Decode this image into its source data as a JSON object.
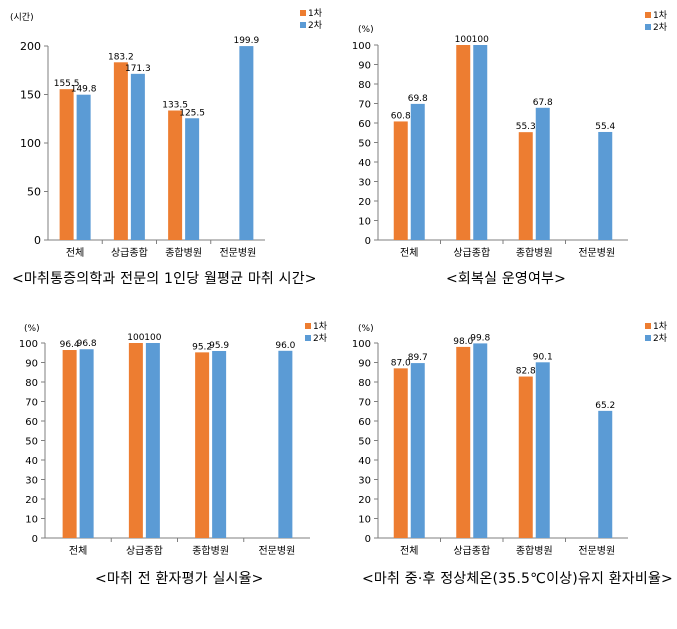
{
  "colors": {
    "series1": "#ED7D31",
    "series2": "#5B9BD5",
    "axis": "#7f7f7f",
    "text": "#000000"
  },
  "chart_data": [
    {
      "type": "bar",
      "ylabel": "(시간)",
      "ylim": [
        0,
        200
      ],
      "yticks": [
        0,
        50,
        100,
        150,
        200
      ],
      "categories": [
        "전체",
        "상급종합",
        "종합병원",
        "전문병원"
      ],
      "series": [
        {
          "name": "1차",
          "values": [
            155.5,
            183.2,
            133.5,
            null
          ],
          "labels": [
            "155.5",
            "183.2",
            "133.5",
            ""
          ]
        },
        {
          "name": "2차",
          "values": [
            149.8,
            171.3,
            125.5,
            199.9
          ],
          "labels": [
            "149.8",
            "171.3",
            "125.5",
            "199.9"
          ]
        }
      ],
      "legend": "top-right",
      "grid": false,
      "caption": "<마취통증의학과 전문의 1인당 월평균 마취 시간>"
    },
    {
      "type": "bar",
      "ylabel": "(%)",
      "ylim": [
        0,
        100
      ],
      "yticks": [
        0,
        10,
        20,
        30,
        40,
        50,
        60,
        70,
        80,
        90,
        100
      ],
      "categories": [
        "전체",
        "상급종합",
        "종합병원",
        "전문병원"
      ],
      "series": [
        {
          "name": "1차",
          "values": [
            60.8,
            100,
            55.3,
            null
          ],
          "labels": [
            "60.8",
            "100",
            "55.3",
            ""
          ]
        },
        {
          "name": "2차",
          "values": [
            69.8,
            100,
            67.8,
            55.4
          ],
          "labels": [
            "69.8",
            "100",
            "67.8",
            "55.4"
          ]
        }
      ],
      "legend": "top-right",
      "grid": false,
      "caption": "<회복실 운영여부>"
    },
    {
      "type": "bar",
      "ylabel": "(%)",
      "ylim": [
        0,
        100
      ],
      "yticks": [
        0,
        10,
        20,
        30,
        40,
        50,
        60,
        70,
        80,
        90,
        100
      ],
      "categories": [
        "전체",
        "상급종합",
        "종합병원",
        "전문병원"
      ],
      "series": [
        {
          "name": "1차",
          "values": [
            96.4,
            100,
            95.2,
            null
          ],
          "labels": [
            "96.4",
            "100",
            "95.2",
            ""
          ]
        },
        {
          "name": "2차",
          "values": [
            96.8,
            100,
            95.9,
            96.0
          ],
          "labels": [
            "96.8",
            "100",
            "95.9",
            "96.0"
          ]
        }
      ],
      "legend": "top-right",
      "grid": false,
      "caption": "<마취 전 환자평가 실시율>"
    },
    {
      "type": "bar",
      "ylabel": "(%)",
      "ylim": [
        0,
        100
      ],
      "yticks": [
        0,
        10,
        20,
        30,
        40,
        50,
        60,
        70,
        80,
        90,
        100
      ],
      "categories": [
        "전체",
        "상급종합",
        "종합병원",
        "전문병원"
      ],
      "series": [
        {
          "name": "1차",
          "values": [
            87.0,
            98.0,
            82.8,
            null
          ],
          "labels": [
            "87.0",
            "98.0",
            "82.8",
            ""
          ]
        },
        {
          "name": "2차",
          "values": [
            89.7,
            99.8,
            90.1,
            65.2
          ],
          "labels": [
            "89.7",
            "99.8",
            "90.1",
            "65.2"
          ]
        }
      ],
      "legend": "top-right",
      "grid": false,
      "caption": "<마취 중·후 정상체온(35.5℃이상)유지 환자비율>"
    }
  ]
}
